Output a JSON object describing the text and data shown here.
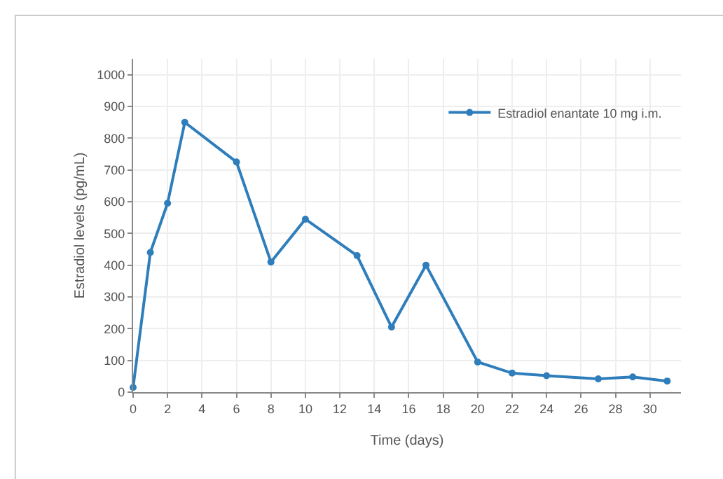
{
  "chart_data": {
    "type": "line",
    "xlabel": "Time (days)",
    "ylabel": "Estradiol levels (pg/mL)",
    "series": [
      {
        "name": "Estradiol enantate 10 mg i.m.",
        "color": "#2f7ebc",
        "x": [
          0,
          1,
          2,
          3,
          6,
          8,
          10,
          13,
          15,
          17,
          20,
          22,
          24,
          27,
          29,
          31
        ],
        "values": [
          15,
          440,
          595,
          850,
          725,
          410,
          545,
          430,
          205,
          400,
          95,
          60,
          52,
          42,
          48,
          35
        ]
      }
    ],
    "xlim": [
      0,
      31.8
    ],
    "xticks": [
      0,
      2,
      4,
      6,
      8,
      10,
      12,
      14,
      16,
      18,
      20,
      22,
      24,
      26,
      28,
      30
    ],
    "ylim": [
      0,
      1050
    ],
    "yticks": [
      0,
      100,
      200,
      300,
      400,
      500,
      600,
      700,
      800,
      900,
      1000
    ],
    "grid": true,
    "legend": "top right",
    "marker": "circle",
    "line_style": "solid"
  }
}
